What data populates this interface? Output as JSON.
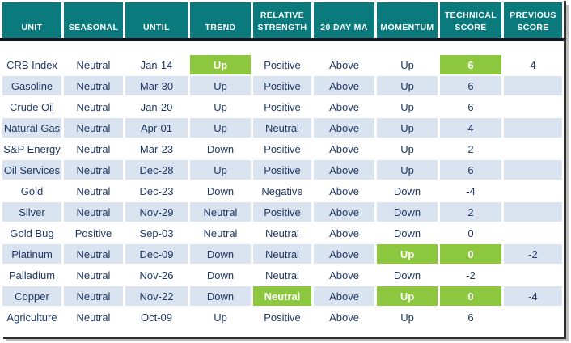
{
  "chart_data": {
    "type": "table",
    "columns": [
      {
        "key": "unit",
        "label": "UNIT"
      },
      {
        "key": "seasonal",
        "label": "SEASONAL"
      },
      {
        "key": "until",
        "label": "UNTIL"
      },
      {
        "key": "trend",
        "label": "TREND"
      },
      {
        "key": "relative-strength",
        "label": "RELATIVE STRENGTH"
      },
      {
        "key": "20-day-ma",
        "label": "20 DAY MA"
      },
      {
        "key": "momentum",
        "label": "MOMENTUM"
      },
      {
        "key": "technical-score",
        "label": "TECHNICAL SCORE"
      },
      {
        "key": "previous-score",
        "label": "PREVIOUS SCORE"
      }
    ],
    "rows": [
      {
        "cells": [
          "CRB Index",
          "Neutral",
          "Jan-14",
          "Up",
          "Positive",
          "Above",
          "Up",
          "6",
          "4"
        ],
        "green_cells": [
          3,
          7
        ]
      },
      {
        "cells": [
          "Gasoline",
          "Neutral",
          "Mar-30",
          "Up",
          "Positive",
          "Above",
          "Up",
          "6",
          ""
        ],
        "green_cells": []
      },
      {
        "cells": [
          "Crude Oil",
          "Neutral",
          "Jan-20",
          "Up",
          "Positive",
          "Above",
          "Up",
          "6",
          ""
        ],
        "green_cells": []
      },
      {
        "cells": [
          "Natural Gas",
          "Neutral",
          "Apr-01",
          "Up",
          "Neutral",
          "Above",
          "Up",
          "4",
          ""
        ],
        "green_cells": []
      },
      {
        "cells": [
          "S&P Energy",
          "Neutral",
          "Mar-23",
          "Down",
          "Positive",
          "Above",
          "Up",
          "2",
          ""
        ],
        "green_cells": []
      },
      {
        "cells": [
          "Oil Services",
          "Neutral",
          "Dec-28",
          "Up",
          "Positive",
          "Above",
          "Up",
          "6",
          ""
        ],
        "green_cells": []
      },
      {
        "cells": [
          "Gold",
          "Neutral",
          "Dec-23",
          "Down",
          "Negative",
          "Above",
          "Down",
          "-4",
          ""
        ],
        "green_cells": []
      },
      {
        "cells": [
          "Silver",
          "Neutral",
          "Nov-29",
          "Neutral",
          "Positive",
          "Above",
          "Down",
          "2",
          ""
        ],
        "green_cells": []
      },
      {
        "cells": [
          "Gold Bug",
          "Positive",
          "Sep-03",
          "Neutral",
          "Neutral",
          "Above",
          "Down",
          "0",
          ""
        ],
        "green_cells": []
      },
      {
        "cells": [
          "Platinum",
          "Neutral",
          "Dec-09",
          "Down",
          "Neutral",
          "Above",
          "Up",
          "0",
          "-2"
        ],
        "green_cells": [
          6,
          7
        ]
      },
      {
        "cells": [
          "Palladium",
          "Neutral",
          "Nov-26",
          "Down",
          "Neutral",
          "Above",
          "Down",
          "-2",
          ""
        ],
        "green_cells": []
      },
      {
        "cells": [
          "Copper",
          "Neutral",
          "Nov-22",
          "Down",
          "Neutral",
          "Above",
          "Up",
          "0",
          "-4"
        ],
        "green_cells": [
          4,
          6,
          7
        ]
      },
      {
        "cells": [
          "Agriculture",
          "Neutral",
          "Oct-09",
          "Up",
          "Positive",
          "Above",
          "Up",
          "6",
          ""
        ],
        "green_cells": []
      }
    ],
    "layout": {
      "header_position": "top",
      "row_striping": "alternating starting white",
      "highlight_meaning_color": "#8DC63F"
    }
  },
  "colors": {
    "header_bg": "#0B7A7C",
    "header_text": "#FFFFFF",
    "row_stripe": "#DAE3F0",
    "row_white": "#FFFFFF",
    "highlight_green": "#8DC63F",
    "highlight_text": "#FFFFFF",
    "cell_text": "#1F3864",
    "header_divider": "#10151F",
    "frame_border": "#2F2F2F",
    "frame_shadow": "#BDBDBD"
  }
}
